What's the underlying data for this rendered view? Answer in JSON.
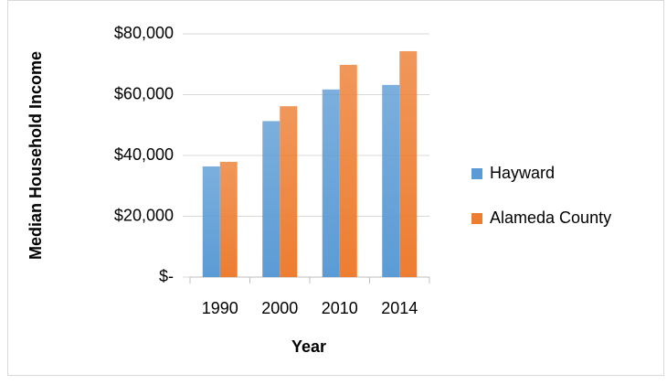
{
  "chart_data": {
    "type": "bar",
    "x_label": "Year",
    "y_label": "Median Household Income",
    "categories": [
      "1990",
      "2000",
      "2010",
      "2014"
    ],
    "series": [
      {
        "name": "Hayward",
        "color": "#5b9bd5",
        "values": [
          36400,
          51300,
          61700,
          63200
        ]
      },
      {
        "name": "Alameda County",
        "color": "#ed7d31",
        "values": [
          37900,
          56200,
          69800,
          74300
        ]
      }
    ],
    "ylim": [
      0,
      80000
    ],
    "yticks": [
      {
        "value": 0,
        "label": "$-"
      },
      {
        "value": 20000,
        "label": "$20,000"
      },
      {
        "value": 40000,
        "label": "$40,000"
      },
      {
        "value": 60000,
        "label": "$60,000"
      },
      {
        "value": 80000,
        "label": "$80,000"
      }
    ],
    "grid": true,
    "legend": "right"
  }
}
